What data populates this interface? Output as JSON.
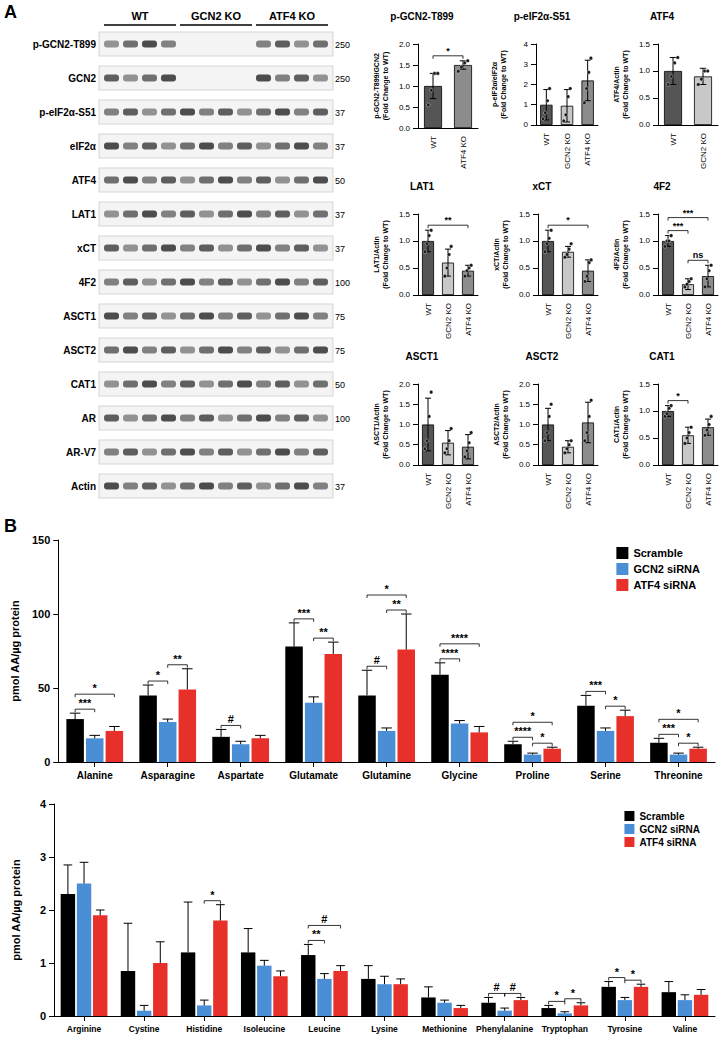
{
  "panels": [
    {
      "label": "A"
    },
    {
      "label": "B"
    }
  ],
  "blot": {
    "groups": [
      "WT",
      "GCN2 KO",
      "ATF4 KO"
    ],
    "rows": [
      {
        "label": "p-GCN2-T899",
        "marker": 250,
        "absent_in": "GCN2 KO"
      },
      {
        "label": "GCN2",
        "marker": 250,
        "absent_in": "GCN2 KO"
      },
      {
        "label": "p-eIF2α-S51",
        "marker": 37
      },
      {
        "label": "eIF2α",
        "marker": 37
      },
      {
        "label": "ATF4",
        "marker": 50
      },
      {
        "label": "LAT1",
        "marker": 37
      },
      {
        "label": "xCT",
        "marker": 37
      },
      {
        "label": "4F2",
        "marker": 100
      },
      {
        "label": "ASCT1",
        "marker": 75
      },
      {
        "label": "ASCT2",
        "marker": 75
      },
      {
        "label": "CAT1",
        "marker": 50
      },
      {
        "label": "AR",
        "marker": 100
      },
      {
        "label": "AR-V7"
      },
      {
        "label": "Actin",
        "marker": 37
      }
    ]
  },
  "chart_data": [
    {
      "type": "bar",
      "title": "p-GCN2-T899",
      "ylabel": "p-GCN2-T899/GCN2\n(Fold Change to WT)",
      "categories": [
        "WT",
        "ATF4 KO"
      ],
      "values": [
        1.0,
        1.5
      ],
      "errors": [
        0.3,
        0.1
      ],
      "colors": [
        "#555555",
        "#8c8c8c"
      ],
      "points": [
        [
          0.55,
          0.9,
          1.3,
          1.3
        ],
        [
          1.35,
          1.45,
          1.55,
          1.6
        ]
      ],
      "ylim": [
        0,
        2
      ],
      "yticks": [
        {
          "value": 0,
          "label": "0.0"
        },
        {
          "value": 0.5,
          "label": "0.5"
        },
        {
          "value": 1,
          "label": "1.0"
        },
        {
          "value": 1.5,
          "label": "1.5"
        },
        {
          "value": 2,
          "label": "2.0"
        }
      ],
      "grid": false,
      "annotations": [
        {
          "from": "WT",
          "to": "ATF4 KO",
          "text": "*"
        }
      ]
    },
    {
      "type": "bar",
      "title": "p-eIF2α-S51",
      "ylabel": "p-eIF2α/eIF2α\n(Fold Change to WT)",
      "categories": [
        "WT",
        "GCN2 KO",
        "ATF4 KO"
      ],
      "values": [
        1.0,
        0.95,
        2.2
      ],
      "errors": [
        0.75,
        0.8,
        1.0
      ],
      "colors": [
        "#555555",
        "#c8c8c8",
        "#8c8c8c"
      ],
      "points": [
        [
          0.3,
          0.6,
          1.2,
          1.8
        ],
        [
          0.2,
          0.5,
          1.4,
          1.8
        ],
        [
          1.1,
          1.8,
          2.6,
          3.3
        ]
      ],
      "ylim": [
        0,
        4
      ],
      "yticks": [
        0,
        1,
        2,
        3,
        4
      ],
      "grid": false,
      "annotations": []
    },
    {
      "type": "bar",
      "title": "ATF4",
      "ylabel": "ATF4/Actin\n(Fold Change to WT)",
      "categories": [
        "WT",
        "GCN2 KO"
      ],
      "values": [
        1.0,
        0.9
      ],
      "errors": [
        0.25,
        0.15
      ],
      "colors": [
        "#555555",
        "#c8c8c8"
      ],
      "points": [
        [
          0.75,
          0.9,
          1.15,
          1.25
        ],
        [
          0.75,
          0.85,
          1.0,
          1.0
        ]
      ],
      "ylim": [
        0,
        1.5
      ],
      "yticks": [
        {
          "value": 0,
          "label": "0.0"
        },
        {
          "value": 0.5,
          "label": "0.5"
        },
        {
          "value": 1,
          "label": "1.0"
        },
        {
          "value": 1.5,
          "label": "1.5"
        }
      ],
      "grid": false,
      "annotations": []
    },
    {
      "type": "bar",
      "title": "LAT1",
      "ylabel": "LAT1/Actin\n(Fold Change to WT)",
      "categories": [
        "WT",
        "GCN2 KO",
        "ATF4 KO"
      ],
      "values": [
        1.0,
        0.6,
        0.45
      ],
      "errors": [
        0.2,
        0.25,
        0.1
      ],
      "colors": [
        "#555555",
        "#c8c8c8",
        "#8c8c8c"
      ],
      "points": [
        [
          0.8,
          0.95,
          1.1,
          1.2
        ],
        [
          0.35,
          0.5,
          0.75,
          0.9
        ],
        [
          0.35,
          0.45,
          0.5,
          0.55
        ]
      ],
      "ylim": [
        0,
        1.5
      ],
      "yticks": [
        {
          "value": 0,
          "label": "0.0"
        },
        {
          "value": 0.5,
          "label": "0.5"
        },
        {
          "value": 1,
          "label": "1.0"
        },
        {
          "value": 1.5,
          "label": "1.5"
        }
      ],
      "grid": false,
      "annotations": [
        {
          "from": "WT",
          "to": "ATF4 KO",
          "text": "**"
        }
      ]
    },
    {
      "type": "bar",
      "title": "xCT",
      "ylabel": "xCT/Actin\n(Fold Change to WT)",
      "categories": [
        "WT",
        "GCN2 KO",
        "ATF4 KO"
      ],
      "values": [
        1.0,
        0.8,
        0.45
      ],
      "errors": [
        0.2,
        0.1,
        0.2
      ],
      "colors": [
        "#555555",
        "#c8c8c8",
        "#8c8c8c"
      ],
      "points": [
        [
          0.8,
          0.95,
          1.05,
          1.2
        ],
        [
          0.7,
          0.75,
          0.85,
          0.95
        ],
        [
          0.25,
          0.35,
          0.6,
          0.65
        ]
      ],
      "ylim": [
        0,
        1.5
      ],
      "yticks": [
        {
          "value": 0,
          "label": "0.0"
        },
        {
          "value": 0.5,
          "label": "0.5"
        },
        {
          "value": 1,
          "label": "1.0"
        },
        {
          "value": 1.5,
          "label": "1.5"
        }
      ],
      "grid": false,
      "annotations": [
        {
          "from": "WT",
          "to": "ATF4 KO",
          "text": "*"
        }
      ]
    },
    {
      "type": "bar",
      "title": "4F2",
      "ylabel": "4F2/Actin\n(Fold Change to WT)",
      "categories": [
        "WT",
        "GCN2 KO",
        "ATF4 KO"
      ],
      "values": [
        1.0,
        0.2,
        0.35
      ],
      "errors": [
        0.1,
        0.1,
        0.2
      ],
      "colors": [
        "#555555",
        "#c8c8c8",
        "#8c8c8c"
      ],
      "points": [
        [
          0.9,
          1.0,
          1.0,
          1.1
        ],
        [
          0.15,
          0.2,
          0.25,
          0.3
        ],
        [
          0.15,
          0.3,
          0.45,
          0.55
        ]
      ],
      "ylim": [
        0,
        1.5
      ],
      "yticks": [
        {
          "value": 0,
          "label": "0.0"
        },
        {
          "value": 0.5,
          "label": "0.5"
        },
        {
          "value": 1,
          "label": "1.0"
        },
        {
          "value": 1.5,
          "label": "1.5"
        }
      ],
      "grid": false,
      "annotations": [
        {
          "from": "WT",
          "to": "GCN2 KO",
          "text": "***"
        },
        {
          "from": "GCN2 KO",
          "to": "ATF4 KO",
          "text": "ns"
        },
        {
          "from": "WT",
          "to": "ATF4 KO",
          "text": "***"
        }
      ]
    },
    {
      "type": "bar",
      "title": "ASCT1",
      "ylabel": "ASCT1/Actin\n(Fold Change to WT)",
      "categories": [
        "WT",
        "GCN2 KO",
        "ATF4 KO"
      ],
      "values": [
        1.0,
        0.55,
        0.45
      ],
      "errors": [
        0.65,
        0.3,
        0.3
      ],
      "colors": [
        "#555555",
        "#c8c8c8",
        "#8c8c8c"
      ],
      "points": [
        [
          0.4,
          0.6,
          1.2,
          1.8
        ],
        [
          0.3,
          0.4,
          0.6,
          0.9
        ],
        [
          0.2,
          0.35,
          0.55,
          0.8
        ]
      ],
      "ylim": [
        0,
        2
      ],
      "yticks": [
        {
          "value": 0,
          "label": "0.0"
        },
        {
          "value": 0.5,
          "label": "0.5"
        },
        {
          "value": 1,
          "label": "1.0"
        },
        {
          "value": 1.5,
          "label": "1.5"
        },
        {
          "value": 2,
          "label": "2.0"
        }
      ],
      "grid": false,
      "annotations": []
    },
    {
      "type": "bar",
      "title": "ASCT2",
      "ylabel": "ASCT2/Actin\n(Fold Change to WT)",
      "categories": [
        "WT",
        "GCN2 KO",
        "ATF4 KO"
      ],
      "values": [
        1.0,
        0.45,
        1.05
      ],
      "errors": [
        0.4,
        0.15,
        0.5
      ],
      "colors": [
        "#555555",
        "#c8c8c8",
        "#8c8c8c"
      ],
      "points": [
        [
          0.6,
          0.8,
          1.2,
          1.5
        ],
        [
          0.3,
          0.4,
          0.5,
          0.6
        ],
        [
          0.6,
          0.8,
          1.2,
          1.6
        ]
      ],
      "ylim": [
        0,
        2
      ],
      "yticks": [
        {
          "value": 0,
          "label": "0.0"
        },
        {
          "value": 0.5,
          "label": "0.5"
        },
        {
          "value": 1,
          "label": "1.0"
        },
        {
          "value": 1.5,
          "label": "1.5"
        },
        {
          "value": 2,
          "label": "2.0"
        }
      ],
      "grid": false,
      "annotations": []
    },
    {
      "type": "bar",
      "title": "CAT1",
      "ylabel": "CAT1/Actin\n(Fold Change to WT)",
      "categories": [
        "WT",
        "GCN2 KO",
        "ATF4 KO"
      ],
      "values": [
        1.0,
        0.55,
        0.7
      ],
      "errors": [
        0.1,
        0.15,
        0.15
      ],
      "colors": [
        "#555555",
        "#c8c8c8",
        "#8c8c8c"
      ],
      "points": [
        [
          0.9,
          0.95,
          1.05,
          1.1
        ],
        [
          0.4,
          0.5,
          0.6,
          0.7
        ],
        [
          0.55,
          0.65,
          0.75,
          0.9
        ]
      ],
      "ylim": [
        0,
        1.5
      ],
      "yticks": [
        {
          "value": 0,
          "label": "0.0"
        },
        {
          "value": 0.5,
          "label": "0.5"
        },
        {
          "value": 1,
          "label": "1.0"
        },
        {
          "value": 1.5,
          "label": "1.5"
        }
      ],
      "grid": false,
      "annotations": [
        {
          "from": "WT",
          "to": "GCN2 KO",
          "text": "*"
        }
      ]
    },
    {
      "type": "bar",
      "ylabel": "pmol AA/µg protein",
      "categories": [
        "Alanine",
        "Asparagine",
        "Aspartate",
        "Glutamate",
        "Glutamine",
        "Glycine",
        "Proline",
        "Serine",
        "Threonine"
      ],
      "series": [
        {
          "name": "Scramble",
          "color": "#000000",
          "values": [
            29,
            45,
            17,
            78,
            45,
            59,
            12,
            38,
            13
          ],
          "errors": [
            4,
            7,
            5,
            16,
            17,
            8,
            2,
            7,
            3
          ]
        },
        {
          "name": "GCN2 siRNA",
          "color": "#4a8fd6",
          "values": [
            16,
            27,
            12,
            40,
            21,
            26,
            5,
            21,
            5
          ],
          "errors": [
            2,
            2,
            2,
            4,
            2,
            2,
            1,
            2,
            1
          ]
        },
        {
          "name": "ATF4 siRNA",
          "color": "#e8302a",
          "values": [
            21,
            49,
            16,
            73,
            76,
            20,
            9,
            31,
            9
          ],
          "errors": [
            3,
            14,
            2,
            8,
            24,
            4,
            1,
            4,
            1
          ]
        }
      ],
      "ylim": [
        0,
        150
      ],
      "yticks": [
        0,
        50,
        100,
        150
      ],
      "grid": false,
      "legend": "upper right",
      "annotations": [
        {
          "category": "Alanine",
          "from": "Scramble",
          "to": "GCN2 siRNA",
          "text": "***"
        },
        {
          "category": "Alanine",
          "from": "Scramble",
          "to": "ATF4 siRNA",
          "text": "*"
        },
        {
          "category": "Asparagine",
          "from": "Scramble",
          "to": "GCN2 siRNA",
          "text": "*"
        },
        {
          "category": "Asparagine",
          "from": "GCN2 siRNA",
          "to": "ATF4 siRNA",
          "text": "**"
        },
        {
          "category": "Aspartate",
          "from": "Scramble",
          "to": "GCN2 siRNA",
          "text": "#"
        },
        {
          "category": "Glutamate",
          "from": "Scramble",
          "to": "GCN2 siRNA",
          "text": "***"
        },
        {
          "category": "Glutamate",
          "from": "GCN2 siRNA",
          "to": "ATF4 siRNA",
          "text": "**"
        },
        {
          "category": "Glutamine",
          "from": "Scramble",
          "to": "GCN2 siRNA",
          "text": "#"
        },
        {
          "category": "Glutamine",
          "from": "Scramble",
          "to": "ATF4 siRNA",
          "text": "*"
        },
        {
          "category": "Glutamine",
          "from": "GCN2 siRNA",
          "to": "ATF4 siRNA",
          "text": "**"
        },
        {
          "category": "Glycine",
          "from": "Scramble",
          "to": "GCN2 siRNA",
          "text": "****"
        },
        {
          "category": "Glycine",
          "from": "Scramble",
          "to": "ATF4 siRNA",
          "text": "****"
        },
        {
          "category": "Proline",
          "from": "Scramble",
          "to": "GCN2 siRNA",
          "text": "****"
        },
        {
          "category": "Proline",
          "from": "Scramble",
          "to": "ATF4 siRNA",
          "text": "*"
        },
        {
          "category": "Proline",
          "from": "GCN2 siRNA",
          "to": "ATF4 siRNA",
          "text": "*"
        },
        {
          "category": "Serine",
          "from": "Scramble",
          "to": "GCN2 siRNA",
          "text": "***"
        },
        {
          "category": "Serine",
          "from": "GCN2 siRNA",
          "to": "ATF4 siRNA",
          "text": "*"
        },
        {
          "category": "Threonine",
          "from": "Scramble",
          "to": "GCN2 siRNA",
          "text": "***"
        },
        {
          "category": "Threonine",
          "from": "Scramble",
          "to": "ATF4 siRNA",
          "text": "*"
        },
        {
          "category": "Threonine",
          "from": "GCN2 siRNA",
          "to": "ATF4 siRNA",
          "text": "*"
        }
      ]
    },
    {
      "type": "bar",
      "ylabel": "pmol AA/µg protein",
      "categories": [
        "Arginine",
        "Cystine",
        "Histidine",
        "Isoleucine",
        "Leucine",
        "Lysine",
        "Methionine",
        "Phenylalanine",
        "Tryptophan",
        "Tyrosine",
        "Valine"
      ],
      "series": [
        {
          "name": "Scramble",
          "color": "#000000",
          "values": [
            2.3,
            0.85,
            1.2,
            1.2,
            1.15,
            0.7,
            0.35,
            0.25,
            0.15,
            0.55,
            0.45
          ],
          "errors": [
            0.55,
            0.9,
            0.95,
            0.45,
            0.2,
            0.25,
            0.2,
            0.1,
            0.05,
            0.1,
            0.2
          ]
        },
        {
          "name": "GCN2 siRNA",
          "color": "#4a8fd6",
          "values": [
            2.5,
            0.1,
            0.2,
            0.95,
            0.7,
            0.6,
            0.25,
            0.1,
            0.05,
            0.3,
            0.3
          ],
          "errors": [
            0.4,
            0.1,
            0.1,
            0.1,
            0.1,
            0.15,
            0.05,
            0.05,
            0.03,
            0.05,
            0.1
          ]
        },
        {
          "name": "ATF4 siRNA",
          "color": "#e8302a",
          "values": [
            1.9,
            1.0,
            1.8,
            0.75,
            0.85,
            0.6,
            0.15,
            0.3,
            0.2,
            0.55,
            0.4
          ],
          "errors": [
            0.1,
            0.4,
            0.3,
            0.1,
            0.1,
            0.1,
            0.05,
            0.05,
            0.05,
            0.05,
            0.1
          ]
        }
      ],
      "ylim": [
        0,
        4
      ],
      "yticks": [
        0,
        1,
        2,
        3,
        4
      ],
      "grid": false,
      "legend": "upper right",
      "annotations": [
        {
          "category": "Histidine",
          "from": "GCN2 siRNA",
          "to": "ATF4 siRNA",
          "text": "*"
        },
        {
          "category": "Leucine",
          "from": "Scramble",
          "to": "GCN2 siRNA",
          "text": "**"
        },
        {
          "category": "Leucine",
          "from": "Scramble",
          "to": "ATF4 siRNA",
          "text": "#"
        },
        {
          "category": "Phenylalanine",
          "from": "Scramble",
          "to": "GCN2 siRNA",
          "text": "#"
        },
        {
          "category": "Phenylalanine",
          "from": "GCN2 siRNA",
          "to": "ATF4 siRNA",
          "text": "#"
        },
        {
          "category": "Tryptophan",
          "from": "Scramble",
          "to": "GCN2 siRNA",
          "text": "*"
        },
        {
          "category": "Tryptophan",
          "from": "GCN2 siRNA",
          "to": "ATF4 siRNA",
          "text": "*"
        },
        {
          "category": "Tyrosine",
          "from": "Scramble",
          "to": "GCN2 siRNA",
          "text": "*"
        },
        {
          "category": "Tyrosine",
          "from": "GCN2 siRNA",
          "to": "ATF4 siRNA",
          "text": "*"
        }
      ]
    }
  ]
}
